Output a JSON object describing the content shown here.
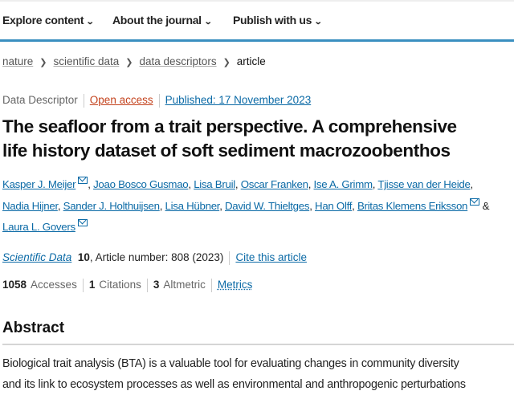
{
  "nav": {
    "items": [
      {
        "label": "Explore content"
      },
      {
        "label": "About the journal"
      },
      {
        "label": "Publish with us"
      }
    ],
    "chevron_icon": "chevron-down-icon"
  },
  "breadcrumb": {
    "items": [
      "nature",
      "scientific data",
      "data descriptors"
    ],
    "current": "article"
  },
  "meta": {
    "type": "Data Descriptor",
    "access": "Open access",
    "published": "Published: 17 November 2023"
  },
  "article": {
    "title_line1": "The seafloor from a trait perspective. A comprehensive",
    "title_line2": "life history dataset of soft sediment macrozoobenthos"
  },
  "authors": [
    "Kasper J. Meijer",
    "Joao Bosco Gusmao",
    "Lisa Bruil",
    "Oscar Franken",
    "Ise A. Grimm",
    "Tjisse van der Heide",
    "Nadia Hijner",
    "Sander J. Holthuijsen",
    "Lisa Hübner",
    "David W. Thieltges",
    "Han Olff",
    "Britas Klemens Eriksson",
    "Laura L. Govers"
  ],
  "authors_and": "&",
  "journal": {
    "name": "Scientific Data",
    "volume": "10",
    "article_number": ", Article number: 808 (2023)",
    "cite": "Cite this article"
  },
  "metrics": {
    "accesses": "1058",
    "accesses_label": "Accesses",
    "citations": "1",
    "citations_label": "Citations",
    "altmetric": "3",
    "altmetric_label": "Altmetric",
    "link": "Metrics"
  },
  "abstract": {
    "heading": "Abstract",
    "line1": "Biological trait analysis (BTA) is a valuable tool for evaluating changes in community diversity",
    "line2": "and its link to ecosystem processes as well as environmental and anthropogenic perturbations"
  },
  "colors": {
    "accent": "#3a8fc0",
    "link": "#0b6aa6",
    "open_access": "#c4441f"
  }
}
